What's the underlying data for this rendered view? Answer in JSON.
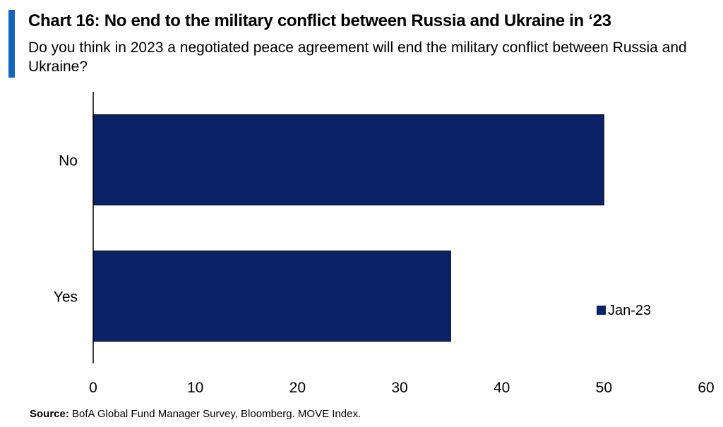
{
  "title": "Chart 16: No end to the military conflict between Russia and Ukraine in ‘23",
  "subtitle": "Do you think in 2023 a negotiated peace agreement will end the military conflict between Russia and Ukraine?",
  "source": {
    "label": "Source:",
    "text": "BofA Global Fund Manager Survey, Bloomberg. MOVE Index."
  },
  "colors": {
    "accent": "#1565c0",
    "bar": "#0b2266"
  },
  "chart_data": {
    "type": "bar",
    "orientation": "horizontal",
    "categories": [
      "No",
      "Yes"
    ],
    "series": [
      {
        "name": "Jan-23",
        "values": [
          50,
          35
        ]
      }
    ],
    "xlim": [
      0,
      60
    ],
    "xticks": [
      0,
      10,
      20,
      30,
      40,
      50,
      60
    ],
    "grid": false,
    "legend": "right"
  }
}
